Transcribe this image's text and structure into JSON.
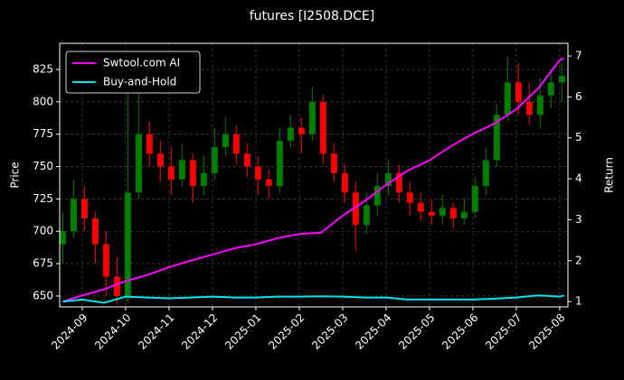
{
  "chart_data": {
    "type": "candlestick_lines",
    "title": "futures [I2508.DCE]",
    "ylabel": "Price",
    "y2label": "Return",
    "xlim": [
      -0.52,
      11.19
    ],
    "xticks": [
      {
        "value": 0,
        "label": "2024-09"
      },
      {
        "value": 1,
        "label": "2024-10"
      },
      {
        "value": 2,
        "label": "2024-11"
      },
      {
        "value": 3,
        "label": "2024-12"
      },
      {
        "value": 4,
        "label": "2025-01"
      },
      {
        "value": 5,
        "label": "2025-02"
      },
      {
        "value": 6,
        "label": "2025-03"
      },
      {
        "value": 7,
        "label": "2025-04"
      },
      {
        "value": 8,
        "label": "2025-05"
      },
      {
        "value": 9,
        "label": "2025-06"
      },
      {
        "value": 10,
        "label": "2025-07"
      },
      {
        "value": 11,
        "label": "2025-08"
      }
    ],
    "ylim": [
      641.6,
      845.2
    ],
    "yticks": [
      650,
      675,
      700,
      725,
      750,
      775,
      800,
      825
    ],
    "y2lim": [
      0.87,
      7.31
    ],
    "y2ticks": [
      1,
      2,
      3,
      4,
      5,
      6,
      7
    ],
    "grid": true,
    "legend": "upper left",
    "up_color": "#008000",
    "down_color": "#ff0000",
    "candles": {
      "x": [
        -0.45,
        -0.2,
        0.05,
        0.3,
        0.55,
        0.8,
        1.05,
        1.3,
        1.55,
        1.8,
        2.05,
        2.3,
        2.55,
        2.8,
        3.05,
        3.3,
        3.55,
        3.8,
        4.05,
        4.3,
        4.55,
        4.8,
        5.05,
        5.3,
        5.55,
        5.8,
        6.05,
        6.3,
        6.55,
        6.8,
        7.05,
        7.3,
        7.55,
        7.8,
        8.05,
        8.3,
        8.55,
        8.8,
        9.05,
        9.3,
        9.55,
        9.8,
        10.05,
        10.3,
        10.55,
        10.8,
        11.05
      ],
      "open": [
        690,
        700,
        725,
        710,
        690,
        665,
        650,
        730,
        775,
        760,
        750,
        740,
        755,
        735,
        745,
        765,
        775,
        760,
        750,
        740,
        735,
        770,
        780,
        775,
        800,
        760,
        745,
        730,
        705,
        720,
        735,
        745,
        730,
        722,
        715,
        712,
        718,
        710,
        715,
        735,
        755,
        790,
        815,
        800,
        790,
        805,
        815
      ],
      "high": [
        715,
        740,
        735,
        715,
        700,
        680,
        810,
        810,
        785,
        770,
        765,
        768,
        760,
        758,
        780,
        788,
        782,
        768,
        758,
        748,
        780,
        790,
        788,
        812,
        805,
        768,
        752,
        738,
        730,
        745,
        755,
        752,
        738,
        730,
        725,
        728,
        722,
        725,
        742,
        765,
        798,
        835,
        830,
        815,
        818,
        825,
        830
      ],
      "low": [
        675,
        695,
        700,
        675,
        650,
        643,
        645,
        725,
        750,
        738,
        728,
        735,
        722,
        728,
        740,
        758,
        752,
        742,
        728,
        725,
        730,
        765,
        760,
        770,
        752,
        738,
        722,
        685,
        698,
        712,
        728,
        722,
        712,
        708,
        705,
        705,
        702,
        705,
        710,
        728,
        750,
        785,
        790,
        782,
        780,
        795,
        800
      ],
      "close": [
        700,
        725,
        710,
        690,
        665,
        650,
        730,
        775,
        760,
        750,
        740,
        755,
        735,
        745,
        765,
        775,
        760,
        750,
        740,
        735,
        770,
        780,
        775,
        800,
        760,
        745,
        730,
        705,
        720,
        735,
        745,
        730,
        722,
        715,
        712,
        718,
        710,
        715,
        735,
        755,
        790,
        815,
        800,
        790,
        805,
        815,
        820
      ]
    },
    "x": [
      -0.45,
      0,
      0.5,
      1,
      1.5,
      2,
      2.5,
      3,
      3.5,
      4,
      4.5,
      5,
      5.5,
      6,
      6.5,
      7,
      7.5,
      8,
      8.5,
      9,
      9.5,
      10,
      10.5,
      11,
      11.1
    ],
    "series": [
      {
        "name": "Swtool.com AI",
        "color": "#ff00ff",
        "axis": "y2",
        "values": [
          1.0,
          1.15,
          1.3,
          1.5,
          1.65,
          1.84,
          2.0,
          2.15,
          2.3,
          2.4,
          2.55,
          2.65,
          2.68,
          3.1,
          3.45,
          3.85,
          4.2,
          4.45,
          4.8,
          5.1,
          5.35,
          5.7,
          6.2,
          6.9,
          6.95
        ]
      },
      {
        "name": "Buy-and-Hold",
        "color": "#00e5ee",
        "axis": "y2",
        "values": [
          1.0,
          1.05,
          0.97,
          1.12,
          1.1,
          1.08,
          1.1,
          1.12,
          1.1,
          1.1,
          1.12,
          1.12,
          1.13,
          1.12,
          1.1,
          1.1,
          1.05,
          1.05,
          1.05,
          1.05,
          1.07,
          1.1,
          1.15,
          1.12,
          1.15
        ]
      }
    ]
  }
}
